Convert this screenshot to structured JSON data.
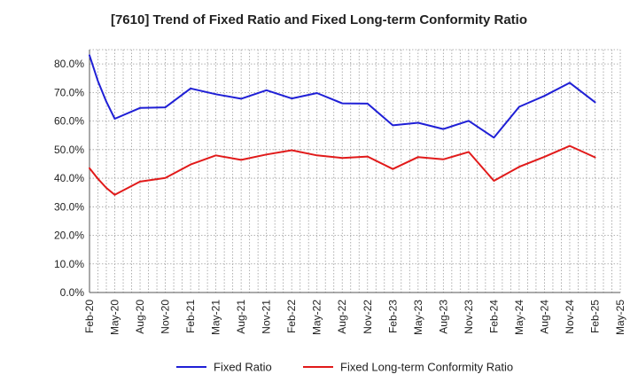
{
  "chart_data": {
    "type": "line",
    "title": "[7610]  Trend of Fixed Ratio and Fixed Long-term Conformity Ratio",
    "xlabel": "",
    "ylabel": "",
    "ylim": [
      0,
      85
    ],
    "y_ticks": [
      "0.0%",
      "10.0%",
      "20.0%",
      "30.0%",
      "40.0%",
      "50.0%",
      "60.0%",
      "70.0%",
      "80.0%"
    ],
    "y_tick_values": [
      0,
      10,
      20,
      30,
      40,
      50,
      60,
      70,
      80
    ],
    "x_ticks": [
      "Feb-20",
      "May-20",
      "Aug-20",
      "Nov-20",
      "Feb-21",
      "May-21",
      "Aug-21",
      "Nov-21",
      "Feb-22",
      "May-22",
      "Aug-22",
      "Nov-22",
      "Feb-23",
      "May-23",
      "Aug-23",
      "Nov-23",
      "Feb-24",
      "May-24",
      "Aug-24",
      "Nov-24",
      "Feb-25",
      "May-25"
    ],
    "grid": true,
    "legend_position": "bottom",
    "series": [
      {
        "name": "Fixed Ratio",
        "color": "#1f1fd6",
        "points": [
          [
            "Feb-20",
            83.0
          ],
          [
            "Mar-20",
            74.0
          ],
          [
            "Apr-20",
            66.8
          ],
          [
            "May-20",
            60.8
          ],
          [
            "Aug-20",
            64.6
          ],
          [
            "Nov-20",
            64.8
          ],
          [
            "Feb-21",
            71.4
          ],
          [
            "May-21",
            69.4
          ],
          [
            "Aug-21",
            67.8
          ],
          [
            "Nov-21",
            70.8
          ],
          [
            "Feb-22",
            67.9
          ],
          [
            "May-22",
            69.8
          ],
          [
            "Aug-22",
            66.2
          ],
          [
            "Nov-22",
            66.1
          ],
          [
            "Feb-23",
            58.5
          ],
          [
            "May-23",
            59.4
          ],
          [
            "Aug-23",
            57.2
          ],
          [
            "Nov-23",
            60.1
          ],
          [
            "Feb-24",
            54.2
          ],
          [
            "May-24",
            65.0
          ],
          [
            "Aug-24",
            68.8
          ],
          [
            "Nov-24",
            73.4
          ],
          [
            "Feb-25",
            66.6
          ]
        ]
      },
      {
        "name": "Fixed Long-term Conformity Ratio",
        "color": "#e11a1a",
        "points": [
          [
            "Feb-20",
            43.5
          ],
          [
            "Mar-20",
            39.8
          ],
          [
            "Apr-20",
            36.6
          ],
          [
            "May-20",
            34.2
          ],
          [
            "Aug-20",
            38.8
          ],
          [
            "Nov-20",
            40.1
          ],
          [
            "Feb-21",
            44.8
          ],
          [
            "May-21",
            48.0
          ],
          [
            "Aug-21",
            46.4
          ],
          [
            "Nov-21",
            48.3
          ],
          [
            "Feb-22",
            49.8
          ],
          [
            "May-22",
            48.0
          ],
          [
            "Aug-22",
            47.1
          ],
          [
            "Nov-22",
            47.6
          ],
          [
            "Feb-23",
            43.2
          ],
          [
            "May-23",
            47.4
          ],
          [
            "Aug-23",
            46.6
          ],
          [
            "Nov-23",
            49.2
          ],
          [
            "Feb-24",
            39.1
          ],
          [
            "May-24",
            44.0
          ],
          [
            "Aug-24",
            47.5
          ],
          [
            "Nov-24",
            51.3
          ],
          [
            "Feb-25",
            47.3
          ]
        ]
      }
    ]
  }
}
